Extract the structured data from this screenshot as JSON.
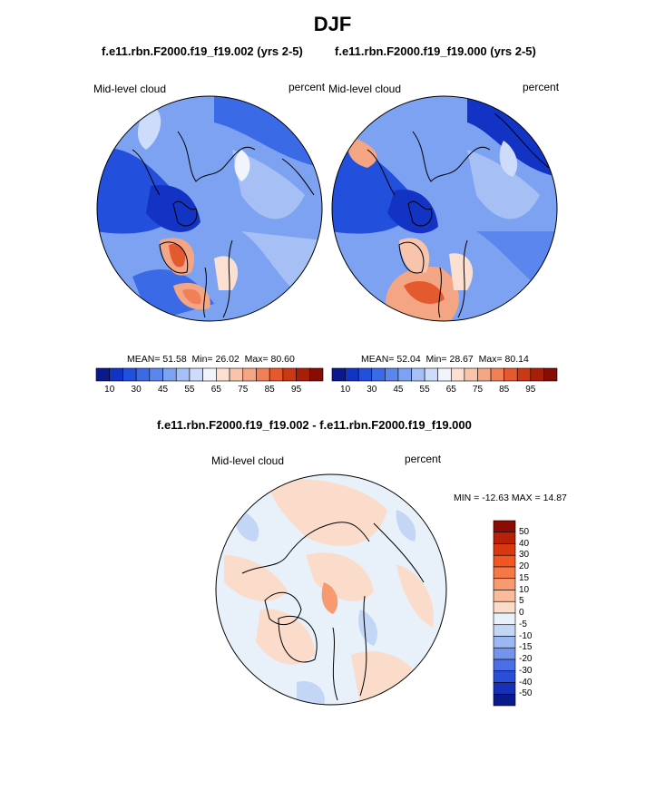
{
  "title": "DJF",
  "panels": [
    {
      "case": "f.e11.rbn.F2000.f19_f19.002 (yrs 2-5)",
      "field": "Mid-level cloud",
      "units": "percent",
      "stats": {
        "mean_label": "MEAN=",
        "mean": "51.58",
        "min_label": "Min=",
        "min": "26.02",
        "max_label": "Max=",
        "max": "80.60"
      }
    },
    {
      "case": "f.e11.rbn.F2000.f19_f19.000 (yrs 2-5)",
      "field": "Mid-level cloud",
      "units": "percent",
      "stats": {
        "mean_label": "MEAN=",
        "mean": "52.04",
        "min_label": "Min=",
        "min": "28.67",
        "max_label": "Max=",
        "max": "80.14"
      }
    }
  ],
  "colorbar_abs": {
    "tick_labels": [
      "10",
      "30",
      "45",
      "55",
      "65",
      "75",
      "85",
      "95"
    ],
    "colors": [
      "#0a1a8c",
      "#1333c4",
      "#2250dc",
      "#3a6ae6",
      "#5a86ee",
      "#7ea2f2",
      "#a6c0f6",
      "#cddcfa",
      "#f1f4fc",
      "#fbe0d2",
      "#f8c4ac",
      "#f4a584",
      "#ef8058",
      "#e5592f",
      "#cc3714",
      "#a81f09",
      "#870c04"
    ]
  },
  "difference": {
    "case": "f.e11.rbn.F2000.f19_f19.002 - f.e11.rbn.F2000.f19_f19.000",
    "field": "Mid-level cloud",
    "units": "percent",
    "stats": "MIN = -12.63 MAX =  14.87",
    "colorbar": {
      "tick_labels": [
        "50",
        "40",
        "30",
        "20",
        "15",
        "10",
        "5",
        "0",
        "-5",
        "-10",
        "-15",
        "-20",
        "-30",
        "-40",
        "-50"
      ],
      "colors": [
        "#8a0c04",
        "#b82008",
        "#d8380f",
        "#f05522",
        "#f57848",
        "#f79a70",
        "#f9bb9b",
        "#fbdccb",
        "#e8f0fa",
        "#c4d6f6",
        "#9cb8f2",
        "#7494ec",
        "#4c6ee6",
        "#2a4ed8",
        "#1830b8",
        "#0a1a8c"
      ]
    }
  }
}
